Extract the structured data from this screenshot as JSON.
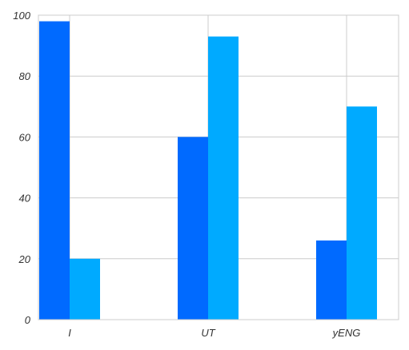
{
  "chart_data": {
    "type": "bar",
    "categories": [
      "I",
      "UT",
      "yENG"
    ],
    "series": [
      {
        "values": [
          98,
          60,
          26
        ],
        "color": "#006AFF"
      },
      {
        "values": [
          20,
          93,
          70
        ],
        "color": "#00AAFF"
      }
    ],
    "ylim": [
      0,
      100
    ],
    "yticks": [
      0,
      20,
      40,
      60,
      80,
      100
    ],
    "grid": true,
    "legend": false,
    "title": "",
    "xlabel": "",
    "ylabel": ""
  }
}
